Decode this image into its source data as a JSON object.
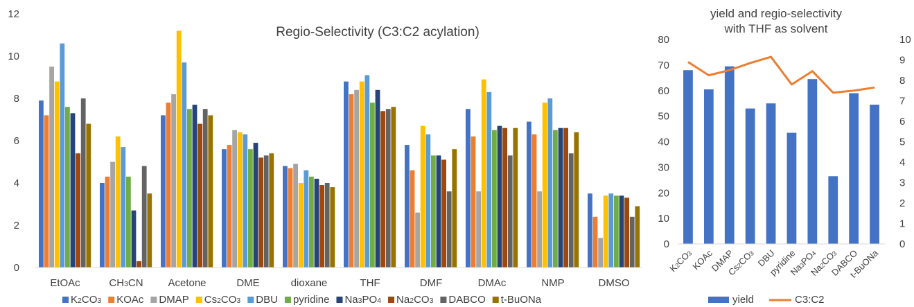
{
  "chart_data": [
    {
      "type": "bar",
      "title": "Regio-Selectivity (C3:C2 acylation)",
      "xlabel": "",
      "ylabel": "",
      "ylim": [
        0,
        12
      ],
      "yticks": [
        "0",
        "2",
        "4",
        "6",
        "8",
        "10",
        "12"
      ],
      "grid": false,
      "legend": "bottom",
      "categories": [
        "EtOAc",
        "CH3CN",
        "Acetone",
        "DME",
        "dioxane",
        "THF",
        "DMF",
        "DMAc",
        "NMP",
        "DMSO"
      ],
      "category_labels": [
        {
          "base": "EtOAc"
        },
        {
          "base": "CH",
          "sub": "3",
          "tail": "CN"
        },
        {
          "base": "Acetone"
        },
        {
          "base": "DME"
        },
        {
          "base": "dioxane"
        },
        {
          "base": "THF"
        },
        {
          "base": "DMF"
        },
        {
          "base": "DMAc"
        },
        {
          "base": "NMP"
        },
        {
          "base": "DMSO"
        }
      ],
      "series": [
        {
          "name": "K2CO3",
          "label": {
            "base": "K",
            "sub": "2",
            "tail": "CO",
            "sub2": "3"
          },
          "color": "#4472C4",
          "values": [
            7.9,
            4.0,
            7.2,
            5.6,
            4.8,
            8.8,
            5.8,
            7.5,
            6.9,
            3.5
          ]
        },
        {
          "name": "KOAc",
          "label": {
            "base": "KOAc"
          },
          "color": "#ED7D31",
          "values": [
            7.2,
            4.3,
            7.8,
            5.8,
            4.7,
            8.2,
            4.6,
            6.2,
            6.3,
            2.4
          ]
        },
        {
          "name": "DMAP",
          "label": {
            "base": "DMAP"
          },
          "color": "#A5A5A5",
          "values": [
            9.5,
            5.0,
            8.2,
            6.5,
            4.9,
            8.4,
            2.6,
            3.6,
            3.6,
            1.4
          ]
        },
        {
          "name": "Cs2CO3",
          "label": {
            "base": "Cs",
            "sub": "2",
            "tail": "CO",
            "sub2": "3"
          },
          "color": "#FFC000",
          "values": [
            8.8,
            6.2,
            11.2,
            6.4,
            4.0,
            8.8,
            6.7,
            8.9,
            7.8,
            3.4
          ]
        },
        {
          "name": "DBU",
          "label": {
            "base": "DBU"
          },
          "color": "#5B9BD5",
          "values": [
            10.6,
            5.7,
            9.7,
            6.3,
            4.6,
            9.1,
            6.3,
            8.3,
            8.0,
            3.5
          ]
        },
        {
          "name": "pyridine",
          "label": {
            "base": "pyridine"
          },
          "color": "#70AD47",
          "values": [
            7.6,
            4.3,
            7.5,
            5.6,
            4.3,
            7.8,
            5.3,
            6.5,
            6.5,
            3.4
          ]
        },
        {
          "name": "Na3PO4",
          "label": {
            "base": "Na",
            "sub": "3",
            "tail": "PO",
            "sub2": "4"
          },
          "color": "#264478",
          "values": [
            7.3,
            2.7,
            7.7,
            5.9,
            4.2,
            8.4,
            5.3,
            6.7,
            6.6,
            3.4
          ]
        },
        {
          "name": "Na2CO3",
          "label": {
            "base": "Na",
            "sub": "2",
            "tail": "CO",
            "sub2": "3"
          },
          "color": "#9E480E",
          "values": [
            5.4,
            0.3,
            6.8,
            5.2,
            3.9,
            7.4,
            5.1,
            6.6,
            6.6,
            3.3
          ]
        },
        {
          "name": "DABCO",
          "label": {
            "base": "DABCO"
          },
          "color": "#636363",
          "values": [
            8.0,
            4.8,
            7.5,
            5.3,
            4.0,
            7.5,
            3.6,
            5.3,
            5.4,
            2.4
          ]
        },
        {
          "name": "t-BuONa",
          "label": {
            "base": "t-BuONa"
          },
          "color": "#997300",
          "values": [
            6.8,
            3.5,
            7.2,
            5.4,
            3.8,
            7.6,
            5.6,
            6.6,
            6.4,
            2.9
          ]
        }
      ]
    },
    {
      "type": "bar",
      "title": "yield and regio-selectivity",
      "subtitle": "with THF  as solvent",
      "xlabel": "",
      "ylabel": "",
      "ylim": [
        0,
        80
      ],
      "y2lim": [
        0,
        10
      ],
      "yticks": [
        "0",
        "10",
        "20",
        "30",
        "40",
        "50",
        "60",
        "70",
        "80"
      ],
      "y2ticks": [
        "0",
        "1",
        "2",
        "3",
        "4",
        "5",
        "6",
        "7",
        "8",
        "9",
        "10"
      ],
      "grid": false,
      "legend": "bottom",
      "categories": [
        "K2CO3",
        "KOAc",
        "DMAP",
        "Cs2CO3",
        "DBU",
        "pyridine",
        "Na3PO4",
        "Na2CO3",
        "DABCO",
        "t-BuONa"
      ],
      "category_labels": [
        {
          "base": "K",
          "sub": "2",
          "tail": "CO",
          "sub2": "3"
        },
        {
          "base": "KOAc"
        },
        {
          "base": "DMAP"
        },
        {
          "base": "Cs",
          "sub": "2",
          "tail": "CO",
          "sub2": "3"
        },
        {
          "base": "DBU"
        },
        {
          "base": "pyridine"
        },
        {
          "base": "Na",
          "sub": "3",
          "tail": "PO",
          "sub2": "4"
        },
        {
          "base": "Na",
          "sub": "2",
          "tail": "CO",
          "sub2": "3"
        },
        {
          "base": "DABCO"
        },
        {
          "base": "t-BuONa"
        }
      ],
      "series": [
        {
          "name": "yield",
          "type": "bar",
          "axis": "left",
          "color": "#4472C4",
          "values": [
            68,
            60.5,
            69.5,
            53,
            55,
            43.5,
            64.5,
            26.5,
            59,
            54.5
          ]
        },
        {
          "name": "C3:C2",
          "type": "line",
          "axis": "right",
          "color": "#ED7D31",
          "values": [
            8.9,
            8.25,
            8.5,
            8.85,
            9.15,
            7.8,
            8.45,
            7.4,
            7.5,
            7.65
          ]
        }
      ]
    }
  ]
}
